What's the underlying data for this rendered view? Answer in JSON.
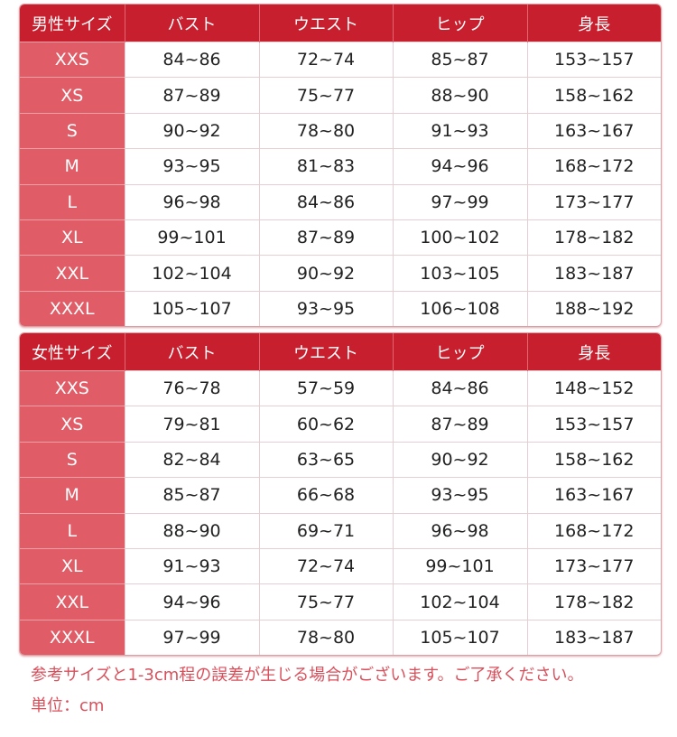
{
  "columns_common": [
    "バスト",
    "ウエスト",
    "ヒップ",
    "身長"
  ],
  "colors": {
    "header": "#c71f2d",
    "size_column": "#e05c66",
    "note": "#d8505c"
  },
  "tables": [
    {
      "title": "男性サイズ",
      "rows": [
        [
          "XXS",
          "84~86",
          "72~74",
          "85~87",
          "153~157"
        ],
        [
          "XS",
          "87~89",
          "75~77",
          "88~90",
          "158~162"
        ],
        [
          "S",
          "90~92",
          "78~80",
          "91~93",
          "163~167"
        ],
        [
          "M",
          "93~95",
          "81~83",
          "94~96",
          "168~172"
        ],
        [
          "L",
          "96~98",
          "84~86",
          "97~99",
          "173~177"
        ],
        [
          "XL",
          "99~101",
          "87~89",
          "100~102",
          "178~182"
        ],
        [
          "XXL",
          "102~104",
          "90~92",
          "103~105",
          "183~187"
        ],
        [
          "XXXL",
          "105~107",
          "93~95",
          "106~108",
          "188~192"
        ]
      ]
    },
    {
      "title": "女性サイズ",
      "rows": [
        [
          "XXS",
          "76~78",
          "57~59",
          "84~86",
          "148~152"
        ],
        [
          "XS",
          "79~81",
          "60~62",
          "87~89",
          "153~157"
        ],
        [
          "S",
          "82~84",
          "63~65",
          "90~92",
          "158~162"
        ],
        [
          "M",
          "85~87",
          "66~68",
          "93~95",
          "163~167"
        ],
        [
          "L",
          "88~90",
          "69~71",
          "96~98",
          "168~172"
        ],
        [
          "XL",
          "91~93",
          "72~74",
          "99~101",
          "173~177"
        ],
        [
          "XXL",
          "94~96",
          "75~77",
          "102~104",
          "178~182"
        ],
        [
          "XXXL",
          "97~99",
          "78~80",
          "105~107",
          "183~187"
        ]
      ]
    }
  ],
  "notes": {
    "disclaimer": "参考サイズと1-3cm程の誤差が生じる場合がございます。ご了承ください。",
    "unit": "単位：cm"
  }
}
